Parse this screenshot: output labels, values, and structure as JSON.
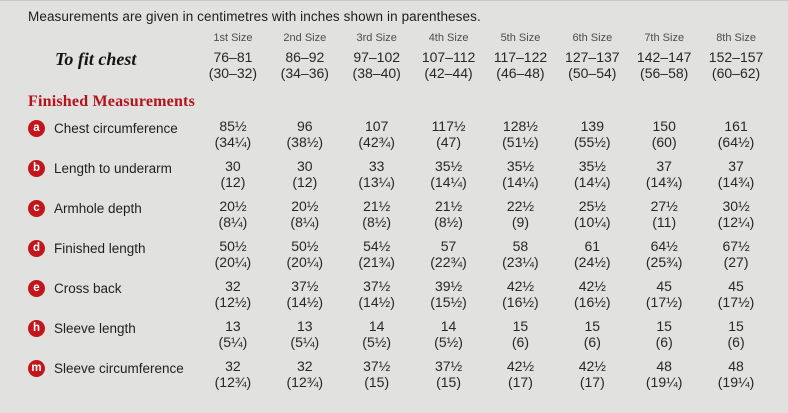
{
  "note": "Measurements are given in centimetres with inches shown in parentheses.",
  "sizes": [
    "1st Size",
    "2nd Size",
    "3rd Size",
    "4th Size",
    "5th Size",
    "6th Size",
    "7th Size",
    "8th Size"
  ],
  "to_fit_chest": {
    "label": "To fit chest",
    "cm": [
      "76–81",
      "86–92",
      "97–102",
      "107–112",
      "117–122",
      "127–137",
      "142–147",
      "152–157"
    ],
    "in": [
      "(30–32)",
      "(34–36)",
      "(38–40)",
      "(42–44)",
      "(46–48)",
      "(50–54)",
      "(56–58)",
      "(60–62)"
    ]
  },
  "section_title": "Finished Measurements",
  "rows": [
    {
      "key": "a",
      "label": "Chest circumference",
      "cm": [
        "85½",
        "96",
        "107",
        "117½",
        "128½",
        "139",
        "150",
        "161"
      ],
      "in": [
        "(34¼)",
        "(38½)",
        "(42¾)",
        "(47)",
        "(51½)",
        "(55½)",
        "(60)",
        "(64½)"
      ]
    },
    {
      "key": "b",
      "label": "Length to underarm",
      "cm": [
        "30",
        "30",
        "33",
        "35½",
        "35½",
        "35½",
        "37",
        "37"
      ],
      "in": [
        "(12)",
        "(12)",
        "(13¼)",
        "(14¼)",
        "(14¼)",
        "(14¼)",
        "(14¾)",
        "(14¾)"
      ]
    },
    {
      "key": "c",
      "label": "Armhole depth",
      "cm": [
        "20½",
        "20½",
        "21½",
        "21½",
        "22½",
        "25½",
        "27½",
        "30½"
      ],
      "in": [
        "(8¼)",
        "(8¼)",
        "(8½)",
        "(8½)",
        "(9)",
        "(10¼)",
        "(11)",
        "(12¼)"
      ]
    },
    {
      "key": "d",
      "label": "Finished length",
      "cm": [
        "50½",
        "50½",
        "54½",
        "57",
        "58",
        "61",
        "64½",
        "67½"
      ],
      "in": [
        "(20¼)",
        "(20¼)",
        "(21¾)",
        "(22¾)",
        "(23¼)",
        "(24½)",
        "(25¾)",
        "(27)"
      ]
    },
    {
      "key": "e",
      "label": "Cross back",
      "cm": [
        "32",
        "37½",
        "37½",
        "39½",
        "42½",
        "42½",
        "45",
        "45"
      ],
      "in": [
        "(12½)",
        "(14½)",
        "(14½)",
        "(15½)",
        "(16½)",
        "(16½)",
        "(17½)",
        "(17½)"
      ]
    },
    {
      "key": "h",
      "label": "Sleeve length",
      "cm": [
        "13",
        "13",
        "14",
        "14",
        "15",
        "15",
        "15",
        "15"
      ],
      "in": [
        "(5¼)",
        "(5¼)",
        "(5½)",
        "(5½)",
        "(6)",
        "(6)",
        "(6)",
        "(6)"
      ]
    },
    {
      "key": "m",
      "label": "Sleeve circumference",
      "cm": [
        "32",
        "32",
        "37½",
        "37½",
        "42½",
        "42½",
        "48",
        "48"
      ],
      "in": [
        "(12¾)",
        "(12¾)",
        "(15)",
        "(15)",
        "(17)",
        "(17)",
        "(19¼)",
        "(19¼)"
      ]
    }
  ],
  "colors": {
    "background": "#e1e1df",
    "accent_red": "#b5121b",
    "badge_red": "#c3161c"
  }
}
